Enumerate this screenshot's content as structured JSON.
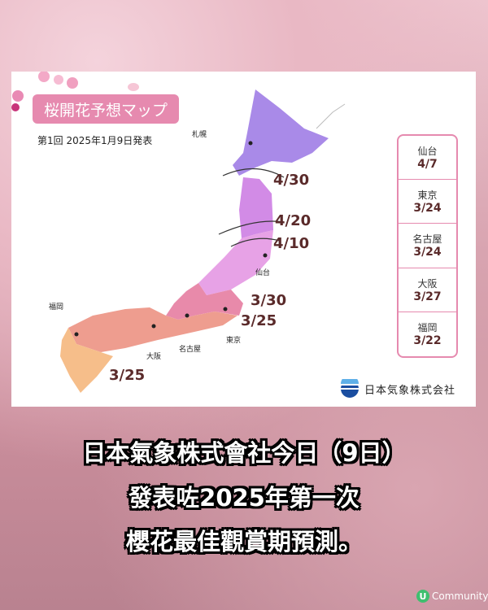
{
  "card": {
    "title": "桜開花予想マップ",
    "subtitle": "第1回  2025年1月9日発表"
  },
  "map": {
    "zones": [
      {
        "date": "4/30",
        "color": "#a98ae8"
      },
      {
        "date": "4/20",
        "color": "#d28be6"
      },
      {
        "date": "4/10",
        "color": "#e7a2e6"
      },
      {
        "date": "3/30",
        "color": "#e88aaa"
      },
      {
        "date": "3/25",
        "color": "#ee9d8f"
      },
      {
        "date": "3/25",
        "color": "#f6be8a"
      }
    ],
    "date_labels": [
      "4/30",
      "4/20",
      "4/10",
      "3/30",
      "3/25",
      "3/25"
    ],
    "cities": [
      "札幌",
      "仙台",
      "東京",
      "名古屋",
      "大阪",
      "福岡"
    ]
  },
  "legend": [
    {
      "city": "仙台",
      "date": "4/7"
    },
    {
      "city": "東京",
      "date": "3/24"
    },
    {
      "city": "名古屋",
      "date": "3/24"
    },
    {
      "city": "大阪",
      "date": "3/27"
    },
    {
      "city": "福岡",
      "date": "3/22"
    }
  ],
  "logo": {
    "name": "日本気象株式会社"
  },
  "caption": [
    "日本氣象株式會社今日（9日）",
    "發表咗2025年第一次",
    "櫻花最佳觀賞期預測。"
  ],
  "brand": {
    "icon": "U",
    "name": "Community"
  },
  "colors": {
    "accent": "#e68aaf",
    "text_dark": "#5a2a2a"
  }
}
